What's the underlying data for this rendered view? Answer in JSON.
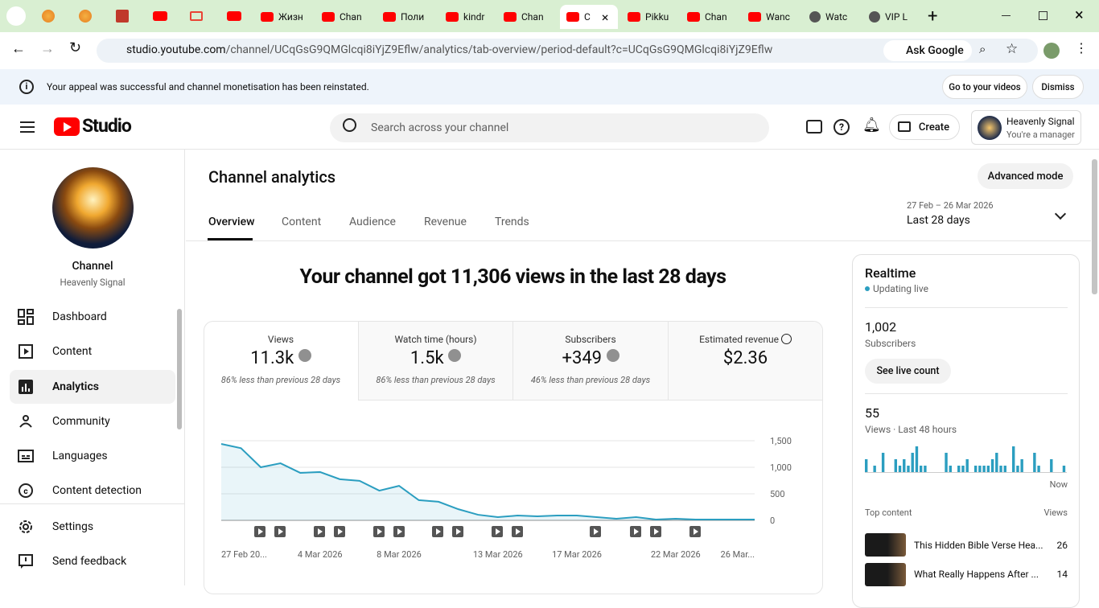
{
  "browser": {
    "tabs": [
      "Жизн",
      "Chan",
      "Поли",
      "kindr",
      "Chan",
      "C",
      "Pikku",
      "Chan",
      "Wanc",
      "Watc",
      "VIP L"
    ],
    "url_host": "studio.youtube.com",
    "url_path": "/channel/UCqGsG9QMGlcqi8iYjZ9Eflw/analytics/tab-overview/period-default?c=UCqGsG9QMGlcqi8iYjZ9Eflw",
    "ask_google": "Ask Google"
  },
  "banner": {
    "message": "Your appeal was successful and channel monetisation has been reinstated.",
    "buttons": [
      "Go to your videos",
      "Dismiss"
    ]
  },
  "header": {
    "logo": "Studio",
    "search_placeholder": "Search across your channel",
    "create": "Create",
    "account_name": "Heavenly Signal",
    "account_role": "You're a manager"
  },
  "sidebar": {
    "channel_label": "Channel",
    "channel_name": "Heavenly Signal",
    "nav": [
      "Dashboard",
      "Content",
      "Analytics",
      "Community",
      "Languages",
      "Content detection"
    ],
    "bottom": [
      "Settings",
      "Send feedback"
    ]
  },
  "analytics": {
    "title": "Channel analytics",
    "advanced": "Advanced mode",
    "tabs": [
      "Overview",
      "Content",
      "Audience",
      "Revenue",
      "Trends"
    ],
    "date_range": "27 Feb – 26 Mar 2026",
    "period": "Last 28 days",
    "headline": "Your channel got 11,306 views in the last 28 days",
    "cards": [
      {
        "label": "Views",
        "value": "11.3k",
        "note": "86% less than previous 28 days"
      },
      {
        "label": "Watch time (hours)",
        "value": "1.5k",
        "note": "86% less than previous 28 days"
      },
      {
        "label": "Subscribers",
        "value": "+349",
        "note": "46% less than previous 28 days"
      },
      {
        "label": "Estimated revenue",
        "value": "$2.36"
      }
    ]
  },
  "realtime": {
    "title": "Realtime",
    "status": "Updating live",
    "subscribers": "1,002",
    "subscribers_label": "Subscribers",
    "live_count": "See live count",
    "views": "55",
    "views_label": "Views · Last 48 hours",
    "now": "Now",
    "top_content": "Top content",
    "views_col": "Views",
    "items": [
      {
        "title": "This Hidden Bible Verse Hea...",
        "views": 26
      },
      {
        "title": "What Really Happens After ...",
        "views": 14
      }
    ]
  },
  "chart_data": [
    {
      "type": "line",
      "categories": [
        "27 Feb 20...",
        null,
        null,
        null,
        null,
        "4 Mar 2026",
        null,
        null,
        null,
        "8 Mar 2026",
        null,
        null,
        null,
        null,
        "13 Mar 2026",
        null,
        null,
        null,
        "17 Mar 2026",
        null,
        null,
        null,
        null,
        "22 Mar 2026",
        null,
        null,
        null,
        "26 Mar..."
      ],
      "values": [
        1440,
        1360,
        1000,
        1075,
        895,
        910,
        775,
        745,
        560,
        650,
        380,
        350,
        210,
        105,
        60,
        90,
        75,
        90,
        90,
        60,
        30,
        60,
        15,
        30,
        15,
        15,
        15,
        15
      ],
      "color": "#2b9ec0",
      "ylim": [
        0,
        1500
      ],
      "yticks": [
        0,
        500,
        {
          "value": 1000,
          "label": "1,000"
        },
        {
          "value": 1500,
          "label": "1,500"
        }
      ],
      "grid": true
    },
    {
      "type": "bar",
      "values": [
        2,
        0,
        1,
        0,
        3,
        0,
        0,
        2,
        1,
        2,
        1,
        3,
        4,
        1,
        1,
        0,
        0,
        0,
        0,
        3,
        1,
        0,
        1,
        1,
        2,
        0,
        1,
        1,
        1,
        1,
        2,
        3,
        1,
        1,
        0,
        4,
        1,
        2,
        0,
        0,
        3,
        1,
        0,
        0,
        2,
        0,
        0,
        1
      ],
      "color": "#2b9ec0"
    }
  ]
}
